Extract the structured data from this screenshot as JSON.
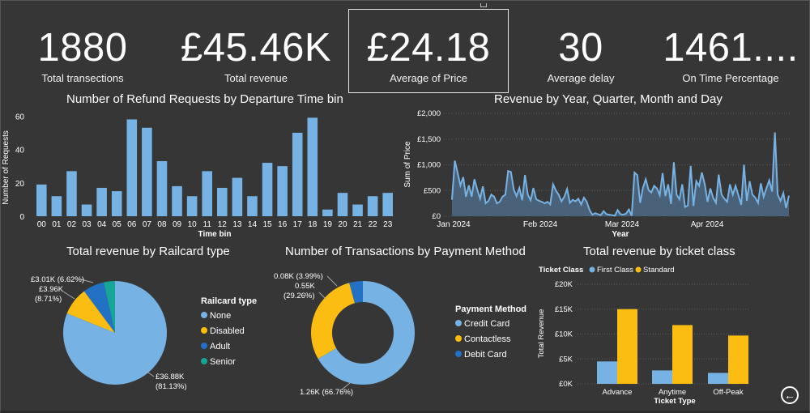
{
  "kpis": [
    {
      "value": "1880",
      "label": "Total transections"
    },
    {
      "value": "£45.46K",
      "label": "Total revenue"
    },
    {
      "value": "£24.18",
      "label": "Average of Price"
    },
    {
      "value": "30",
      "label": "Average delay"
    },
    {
      "value": "1461....",
      "label": "On Time Percentage"
    }
  ],
  "colors": {
    "background": "#363636",
    "bar": "#76b2e3",
    "first_class": "#76b2e3",
    "standard": "#fbbd12",
    "adult": "#2271c4",
    "senior": "#17a597",
    "line": "#76b2e3",
    "area": "#4d6a85"
  },
  "icons": {
    "back": "back-arrow-icon"
  },
  "chart_data": [
    {
      "type": "bar",
      "title": "Number of Refund Requests by Departure Time bin",
      "xlabel": "Time bin",
      "ylabel": "Number of Requests",
      "ylim": [
        0,
        65
      ],
      "yticks": [
        "0",
        "20",
        "40",
        "60"
      ],
      "categories": [
        "00",
        "01",
        "02",
        "03",
        "04",
        "05",
        "06",
        "07",
        "08",
        "09",
        "10",
        "11",
        "12",
        "13",
        "14",
        "15",
        "16",
        "17",
        "18",
        "19",
        "20",
        "21",
        "22",
        "23"
      ],
      "values": [
        19,
        12,
        27,
        7,
        17,
        15,
        58,
        53,
        33,
        18,
        12,
        27,
        17,
        23,
        12,
        32,
        30,
        50,
        59,
        4,
        14,
        7,
        12,
        14
      ],
      "grid": false
    },
    {
      "type": "area",
      "title": "Revenue by Year, Quarter, Month and Day",
      "xlabel": "Year",
      "ylabel": "Sum of Price",
      "ylim": [
        0,
        2000
      ],
      "yticks": [
        "£0",
        "£500",
        "£1,000",
        "£1,500",
        "£2,000"
      ],
      "xticks": [
        "Jan 2024",
        "Feb 2024",
        "Mar 2024",
        "Apr 2024"
      ],
      "x_range": [
        "2024-01-01",
        "2024-04-30"
      ],
      "values": [
        320,
        1080,
        850,
        600,
        760,
        380,
        600,
        380,
        720,
        520,
        340,
        580,
        250,
        300,
        420,
        380,
        250,
        280,
        380,
        420,
        880,
        860,
        520,
        390,
        550,
        310,
        800,
        420,
        310,
        550,
        330,
        300,
        280,
        250,
        280,
        230,
        620,
        500,
        420,
        290,
        380,
        530,
        260,
        320,
        290,
        340,
        230,
        360,
        280,
        120,
        30,
        60,
        40,
        20,
        100,
        40,
        30,
        20,
        10,
        120,
        40,
        30,
        50,
        130,
        10,
        850,
        800,
        260,
        550,
        720,
        510,
        460,
        590,
        540,
        410,
        840,
        390,
        620,
        240,
        1050,
        420,
        330,
        620,
        180,
        210,
        980,
        200,
        680,
        590,
        850,
        630,
        280,
        540,
        360,
        260,
        810,
        420,
        340,
        280,
        620,
        420,
        590,
        410,
        220,
        1000,
        300,
        680,
        420,
        360,
        260,
        640,
        380,
        550,
        700,
        480,
        1630,
        420,
        300,
        450,
        160,
        400
      ],
      "grid": true
    },
    {
      "type": "pie",
      "title": "Total revenue by Railcard type",
      "legend_title": "Railcard type",
      "series": [
        {
          "name": "None",
          "value": 36.88,
          "label": "£36.88K",
          "pct": "(81.13%)"
        },
        {
          "name": "Disabled",
          "value": 3.96,
          "label": "£3.96K",
          "pct": "(8.71%)"
        },
        {
          "name": "Adult",
          "value": 3.01,
          "label": "£3.01K (6.62%)",
          "pct": ""
        },
        {
          "name": "Senior",
          "value": 1.61,
          "label": "",
          "pct": ""
        }
      ],
      "legend_placement": "right"
    },
    {
      "type": "pie",
      "title": "Number of Transactions by Payment Method",
      "legend_title": "Payment Method",
      "series": [
        {
          "name": "Credit Card",
          "value": 1.26,
          "label": "1.26K (66.76%)"
        },
        {
          "name": "Contactless",
          "value": 0.55,
          "label": "0.55K",
          "pct": "(29.26%)"
        },
        {
          "name": "Debit Card",
          "value": 0.08,
          "label": "0.08K (3.99%)"
        }
      ],
      "legend_placement": "right"
    },
    {
      "type": "bar",
      "title": "Total revenue by ticket class",
      "legend_title": "Ticket Class",
      "xlabel": "Ticket Type",
      "ylabel": "Total Revenue",
      "ylim": [
        0,
        20000
      ],
      "yticks": [
        "£0K",
        "£5K",
        "£10K",
        "£15K",
        "£20K"
      ],
      "categories": [
        "Advance",
        "Anytime",
        "Off-Peak"
      ],
      "series": [
        {
          "name": "First Class",
          "values": [
            4500,
            2700,
            2200
          ]
        },
        {
          "name": "Standard",
          "values": [
            15000,
            11800,
            9700
          ]
        }
      ],
      "legend_placement": "top"
    }
  ]
}
